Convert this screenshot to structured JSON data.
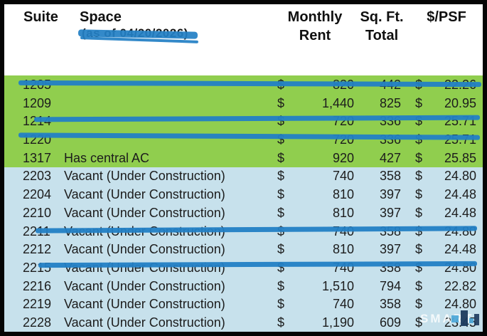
{
  "header": {
    "suite": "Suite",
    "space": "Space",
    "space_note": "(as of 04/20/2026)",
    "monthly_line1": "Monthly",
    "monthly_line2": "Rent",
    "sqft_line1": "Sq. Ft.",
    "sqft_line2": "Total",
    "psf": "$/PSF"
  },
  "table": {
    "currency": "$",
    "rows": [
      {
        "suite": "1205",
        "space": "",
        "rent": "820",
        "sqft": "442",
        "psf": "22.26",
        "group": "green",
        "struck": true
      },
      {
        "suite": "1209",
        "space": "",
        "rent": "1,440",
        "sqft": "825",
        "psf": "20.95",
        "group": "green",
        "struck": false
      },
      {
        "suite": "1214",
        "space": "",
        "rent": "720",
        "sqft": "336",
        "psf": "25.71",
        "group": "green",
        "struck": true
      },
      {
        "suite": "1220",
        "space": "",
        "rent": "720",
        "sqft": "336",
        "psf": "25.71",
        "group": "green",
        "struck": true
      },
      {
        "suite": "1317",
        "space": "Has central AC",
        "rent": "920",
        "sqft": "427",
        "psf": "25.85",
        "group": "green",
        "struck": false
      },
      {
        "suite": "2203",
        "space": "Vacant (Under Construction)",
        "rent": "740",
        "sqft": "358",
        "psf": "24.80",
        "group": "blue",
        "struck": false
      },
      {
        "suite": "2204",
        "space": "Vacant (Under Construction)",
        "rent": "810",
        "sqft": "397",
        "psf": "24.48",
        "group": "blue",
        "struck": false
      },
      {
        "suite": "2210",
        "space": "Vacant (Under Construction)",
        "rent": "810",
        "sqft": "397",
        "psf": "24.48",
        "group": "blue",
        "struck": false
      },
      {
        "suite": "2211",
        "space": "Vacant (Under Construction)",
        "rent": "740",
        "sqft": "358",
        "psf": "24.80",
        "group": "blue",
        "struck": true
      },
      {
        "suite": "2212",
        "space": "Vacant (Under Construction)",
        "rent": "810",
        "sqft": "397",
        "psf": "24.48",
        "group": "blue",
        "struck": false
      },
      {
        "suite": "2215",
        "space": "Vacant (Under Construction)",
        "rent": "740",
        "sqft": "358",
        "psf": "24.80",
        "group": "blue",
        "struck": true
      },
      {
        "suite": "2216",
        "space": "Vacant (Under Construction)",
        "rent": "1,510",
        "sqft": "794",
        "psf": "22.82",
        "group": "blue",
        "struck": false
      },
      {
        "suite": "2219",
        "space": "Vacant (Under Construction)",
        "rent": "740",
        "sqft": "358",
        "psf": "24.80",
        "group": "blue",
        "struck": false
      },
      {
        "suite": "2228",
        "space": "Vacant (Under Construction)",
        "rent": "1,190",
        "sqft": "609",
        "psf": "23.45",
        "group": "blue",
        "struck": false
      }
    ]
  },
  "watermark": {
    "text": "SMART"
  },
  "colors": {
    "green_row": "#90CE4E",
    "blue_row": "#C7E1EC",
    "marker_blue": "#2380C5",
    "border": "#050505"
  }
}
